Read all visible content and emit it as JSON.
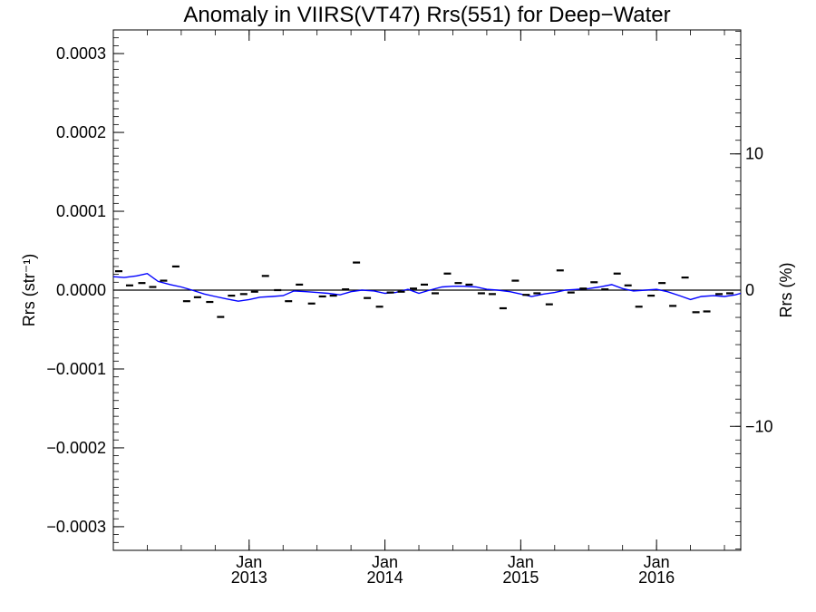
{
  "chart_data": {
    "type": "scatter",
    "title": "Anomaly in VIIRS(VT47) Rrs(551) for Deep−Water",
    "ylabel_left": "Rrs (str⁻¹)",
    "ylabel_right": "Rrs (%)",
    "xlabel": "",
    "x_unit": "years (decimal)",
    "xlim": [
      2012.0,
      2016.62
    ],
    "ylim_left": [
      -0.00033,
      0.00033
    ],
    "ylim_right": [
      -19.1,
      19.1
    ],
    "x_ticks": [
      {
        "x": 2013.0,
        "month": "Jan",
        "year": "2013"
      },
      {
        "x": 2014.0,
        "month": "Jan",
        "year": "2014"
      },
      {
        "x": 2015.0,
        "month": "Jan",
        "year": "2015"
      },
      {
        "x": 2016.0,
        "month": "Jan",
        "year": "2016"
      }
    ],
    "y_ticks_left": [
      {
        "value": 0.0003,
        "label": "0.0003"
      },
      {
        "value": 0.0002,
        "label": "0.0002"
      },
      {
        "value": 0.0001,
        "label": "0.0001"
      },
      {
        "value": 0.0,
        "label": "0.0000"
      },
      {
        "value": -0.0001,
        "label": "−0.0001"
      },
      {
        "value": -0.0002,
        "label": "−0.0002"
      },
      {
        "value": -0.0003,
        "label": "−0.0003"
      }
    ],
    "y_ticks_right": [
      {
        "value": 10,
        "label": "10"
      },
      {
        "value": 0,
        "label": "0"
      },
      {
        "value": -10,
        "label": "−10"
      }
    ],
    "series": [
      {
        "kind": "points",
        "marker": "dash",
        "color": "#000000",
        "x": [
          2012.04,
          2012.12,
          2012.21,
          2012.29,
          2012.37,
          2012.46,
          2012.54,
          2012.62,
          2012.71,
          2012.79,
          2012.87,
          2012.96,
          2013.04,
          2013.12,
          2013.21,
          2013.29,
          2013.37,
          2013.46,
          2013.54,
          2013.62,
          2013.71,
          2013.79,
          2013.87,
          2013.96,
          2014.04,
          2014.12,
          2014.21,
          2014.29,
          2014.37,
          2014.46,
          2014.54,
          2014.62,
          2014.71,
          2014.79,
          2014.87,
          2014.96,
          2015.04,
          2015.12,
          2015.21,
          2015.29,
          2015.37,
          2015.46,
          2015.54,
          2015.62,
          2015.71,
          2015.79,
          2015.87,
          2015.96,
          2016.04,
          2016.12,
          2016.21,
          2016.29,
          2016.37,
          2016.46,
          2016.54
        ],
        "y": [
          2.4e-05,
          6e-06,
          9e-06,
          4e-06,
          1.2e-05,
          3e-05,
          -1.4e-05,
          -9e-06,
          -1.5e-05,
          -3.4e-05,
          -7e-06,
          -5e-06,
          -2e-06,
          1.8e-05,
          0.0,
          -1.4e-05,
          7e-06,
          -1.7e-05,
          -8e-06,
          -7e-06,
          1e-06,
          3.5e-05,
          -1e-05,
          -2.1e-05,
          -3e-06,
          -2e-06,
          2e-06,
          7e-06,
          -4e-06,
          2.1e-05,
          9e-06,
          7e-06,
          -4e-06,
          -5e-06,
          -2.3e-05,
          1.2e-05,
          -6e-06,
          -4e-06,
          -1.8e-05,
          2.5e-05,
          -3e-06,
          2e-06,
          1e-05,
          1e-06,
          2.1e-05,
          6e-06,
          -2.1e-05,
          -7e-06,
          9e-06,
          -2e-05,
          1.6e-05,
          -2.8e-05,
          -2.7e-05,
          -5e-06,
          -4e-06
        ]
      },
      {
        "kind": "line",
        "color": "#0000ff",
        "x": [
          2012.0,
          2012.08,
          2012.17,
          2012.25,
          2012.33,
          2012.42,
          2012.5,
          2012.58,
          2012.67,
          2012.75,
          2012.83,
          2012.92,
          2013.0,
          2013.08,
          2013.17,
          2013.25,
          2013.33,
          2013.42,
          2013.5,
          2013.58,
          2013.67,
          2013.75,
          2013.83,
          2013.92,
          2014.0,
          2014.08,
          2014.17,
          2014.25,
          2014.33,
          2014.42,
          2014.5,
          2014.58,
          2014.67,
          2014.75,
          2014.83,
          2014.92,
          2015.0,
          2015.08,
          2015.17,
          2015.25,
          2015.33,
          2015.42,
          2015.5,
          2015.58,
          2015.67,
          2015.75,
          2015.83,
          2015.92,
          2016.0,
          2016.08,
          2016.17,
          2016.25,
          2016.33,
          2016.42,
          2016.5,
          2016.58,
          2016.62
        ],
        "y": [
          1.7e-05,
          1.6e-05,
          1.8e-05,
          2.1e-05,
          1.1e-05,
          7e-06,
          4e-06,
          0.0,
          -5e-06,
          -8e-06,
          -1.1e-05,
          -1.4e-05,
          -1.2e-05,
          -9e-06,
          -8e-06,
          -7e-06,
          -1e-06,
          -2e-06,
          -3e-06,
          -4e-06,
          -6e-06,
          -2e-06,
          0.0,
          -1e-06,
          -4e-06,
          -3e-06,
          1e-06,
          -4e-06,
          0.0,
          4e-06,
          5e-06,
          5e-06,
          4e-06,
          1e-06,
          0.0,
          -2e-06,
          -5e-06,
          -8e-06,
          -5e-06,
          -3e-06,
          0.0,
          1e-06,
          2e-06,
          4e-06,
          7e-06,
          2e-06,
          -1e-06,
          0.0,
          1e-06,
          -2e-06,
          -7e-06,
          -1.2e-05,
          -8e-06,
          -7e-06,
          -8e-06,
          -6e-06,
          -4e-06
        ]
      }
    ],
    "reference_line": {
      "y": 0.0,
      "color": "#000000"
    }
  }
}
